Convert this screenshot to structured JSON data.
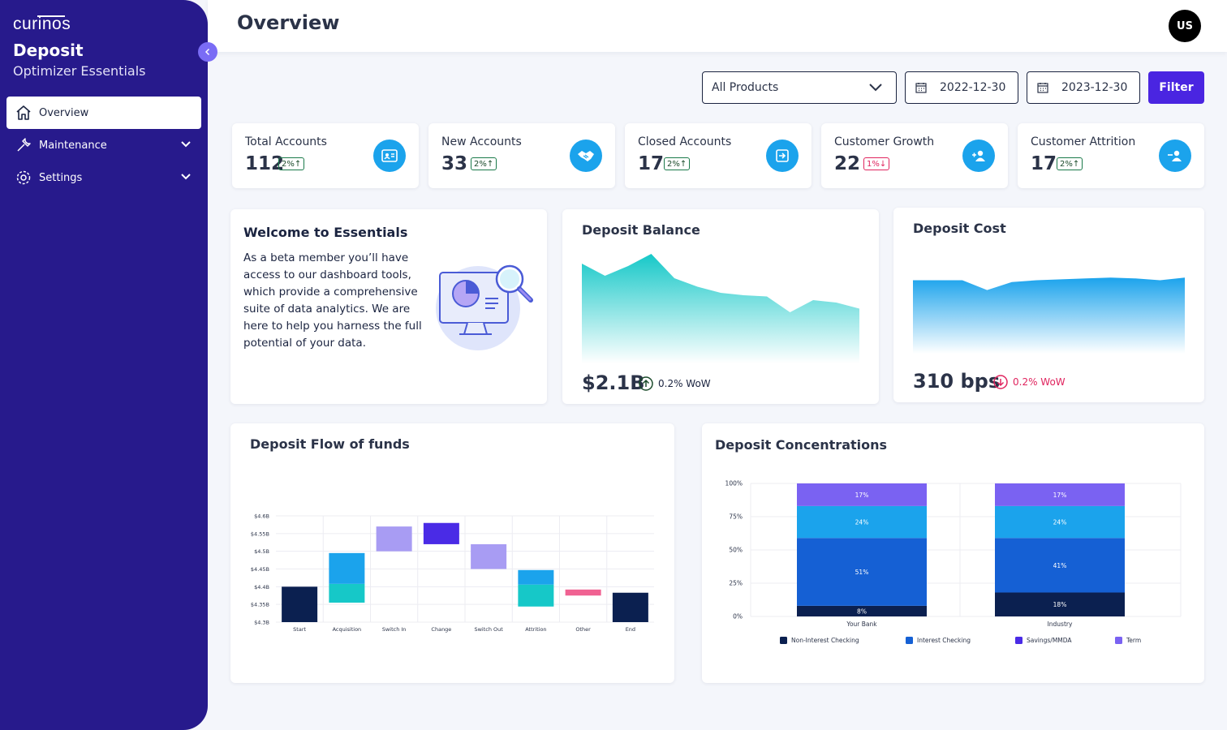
{
  "sidebar": {
    "logo": "curinos",
    "title": "Deposit",
    "subtitle": "Optimizer Essentials",
    "items": [
      {
        "label": "Overview"
      },
      {
        "label": "Maintenance"
      },
      {
        "label": "Settings"
      }
    ]
  },
  "header": {
    "title": "Overview",
    "avatar": "US"
  },
  "filters": {
    "product": "All Products",
    "start_date": "2022-12-30",
    "end_date": "2023-12-30",
    "button": "Filter"
  },
  "kpis": [
    {
      "label": "Total Accounts",
      "value": "112",
      "change": "2%",
      "direction": "up",
      "icon": "id-card-icon"
    },
    {
      "label": "New Accounts",
      "value": "33",
      "change": "2%",
      "direction": "up",
      "icon": "handshake-icon"
    },
    {
      "label": "Closed Accounts",
      "value": "17",
      "change": "2%",
      "direction": "up",
      "icon": "exit-icon"
    },
    {
      "label": "Customer Growth",
      "value": "22",
      "change": "1%",
      "direction": "down",
      "icon": "user-add-icon"
    },
    {
      "label": "Customer Attrition",
      "value": "17",
      "change": "2%",
      "direction": "up",
      "icon": "user-remove-icon"
    }
  ],
  "welcome": {
    "title": "Welcome to Essentials",
    "body": "As a beta member you’ll have access to our dashboard tools, which provide a comprehensive suite of data analytics. We are here to help you harness the full potential of your data."
  },
  "deposit_balance": {
    "title": "Deposit Balance",
    "value": "$2.1B",
    "change": "0.2% WoW",
    "direction": "up"
  },
  "deposit_cost": {
    "title": "Deposit Cost",
    "value": "310 bps",
    "change": "0.2% WoW",
    "direction": "down"
  },
  "flow": {
    "title": "Deposit Flow of funds"
  },
  "concentrations": {
    "title": "Deposit Concentrations"
  },
  "colors": {
    "sidebar": "#271a8c",
    "accent": "#4a25e1",
    "teal": "#16c8c8",
    "blue": "#1ba3ec",
    "navy": "#0b2050",
    "mid_blue": "#1560d4",
    "purple": "#7a62f2",
    "lavender": "#a89cf3",
    "violet": "#4a2be6",
    "pink": "#f06292",
    "negative": "#e0245e"
  },
  "chart_data": [
    {
      "type": "area",
      "title": "Deposit Balance",
      "values": [
        0.82,
        0.72,
        0.8,
        0.9,
        0.7,
        0.63,
        0.58,
        0.56,
        0.55,
        0.42,
        0.52,
        0.5,
        0.45
      ]
    },
    {
      "type": "area",
      "title": "Deposit Cost",
      "values": [
        0.55,
        0.55,
        0.55,
        0.44,
        0.53,
        0.55,
        0.56,
        0.57,
        0.58,
        0.57,
        0.55,
        0.58
      ]
    },
    {
      "type": "bar",
      "subtype": "waterfall",
      "title": "Deposit Flow of funds",
      "categories": [
        "Start",
        "Acquisition",
        "Switch In",
        "Change",
        "Switch Out",
        "Attrition",
        "Other",
        "End"
      ],
      "y_ticks": [
        "$4.3B",
        "$4.35B",
        "$4.4B",
        "$4.45B",
        "$4.5B",
        "$4.55B",
        "$4.6B"
      ],
      "ylim": [
        4.3,
        4.6
      ],
      "segments": [
        {
          "category": "Start",
          "low": 4.3,
          "high": 4.4,
          "color": "#0b2050"
        },
        {
          "category": "Acquisition",
          "low": 4.355,
          "high": 4.408,
          "color": "#16c8c8"
        },
        {
          "category": "Acquisition",
          "low": 4.408,
          "high": 4.495,
          "color": "#1ba3ec"
        },
        {
          "category": "Switch In",
          "low": 4.5,
          "high": 4.57,
          "color": "#a89cf3"
        },
        {
          "category": "Change",
          "low": 4.52,
          "high": 4.58,
          "color": "#4a2be6"
        },
        {
          "category": "Switch Out",
          "low": 4.45,
          "high": 4.52,
          "color": "#a89cf3"
        },
        {
          "category": "Attrition",
          "low": 4.344,
          "high": 4.406,
          "color": "#16c8c8"
        },
        {
          "category": "Attrition",
          "low": 4.406,
          "high": 4.447,
          "color": "#1ba3ec"
        },
        {
          "category": "Other",
          "low": 4.375,
          "high": 4.392,
          "color": "#f06292"
        },
        {
          "category": "End",
          "low": 4.3,
          "high": 4.383,
          "color": "#0b2050"
        }
      ]
    },
    {
      "type": "bar",
      "subtype": "stacked-100",
      "title": "Deposit Concentrations",
      "categories": [
        "Your Bank",
        "Industry"
      ],
      "y_ticks": [
        "0%",
        "25%",
        "50%",
        "75%",
        "100%"
      ],
      "series": [
        {
          "name": "Non-Interest Checking",
          "values": [
            8,
            18
          ],
          "labels": [
            "8%",
            "18%"
          ],
          "color": "#0b2050"
        },
        {
          "name": "Interest Checking",
          "values": [
            51,
            41
          ],
          "labels": [
            "51%",
            "41%"
          ],
          "color": "#1560d4"
        },
        {
          "name": "Savings/MMDA",
          "values": [
            24,
            24
          ],
          "labels": [
            "24%",
            "24%"
          ],
          "color": "#1ba3ec"
        },
        {
          "name": "Term",
          "values": [
            17,
            17
          ],
          "labels": [
            "17%",
            "17%"
          ],
          "color": "#7a62f2"
        }
      ],
      "legend": [
        {
          "name": "Non-Interest Checking",
          "color": "#0b2050"
        },
        {
          "name": "Interest Checking",
          "color": "#1560d4"
        },
        {
          "name": "Savings/MMDA",
          "color": "#4a2be6"
        },
        {
          "name": "Term",
          "color": "#7a62f2"
        }
      ],
      "legend_position": "bottom"
    }
  ]
}
